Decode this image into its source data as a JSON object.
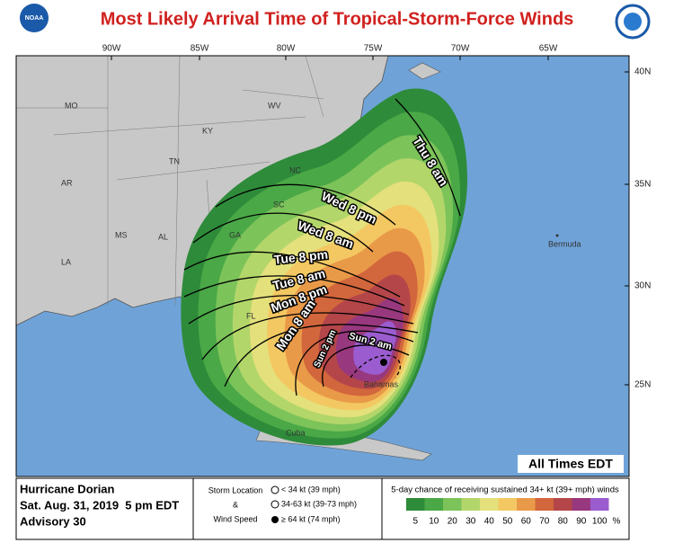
{
  "header": {
    "title": "Most Likely Arrival Time of Tropical-Storm-Force Winds",
    "logo": "NOAA"
  },
  "map": {
    "longitude_labels": [
      "90W",
      "85W",
      "80W",
      "75W",
      "70W",
      "65W"
    ],
    "latitude_labels": [
      "40N",
      "35N",
      "30N",
      "25N"
    ],
    "place_labels": [
      "MO",
      "KY",
      "WV",
      "TN",
      "NC",
      "AR",
      "SC",
      "MS",
      "AL",
      "GA",
      "LA",
      "FL",
      "Bermuda",
      "Cuba",
      "Bahamas"
    ],
    "arrival_labels": [
      "Thu 8 am",
      "Wed 8 pm",
      "Wed 8 am",
      "Tue 8 pm",
      "Tue 8 am",
      "Mon 8 pm",
      "Mon 8 am",
      "Sun 2 pm",
      "Sun 2 am"
    ],
    "time_zone_note": "All Times EDT"
  },
  "footer": {
    "storm_name": "Hurricane Dorian",
    "issued": "Sat. Aug. 31, 2019  5 pm EDT",
    "advisory": "Advisory 30",
    "storm_legend": {
      "title_lines": [
        "Storm Location",
        "&",
        "Wind Speed"
      ],
      "items": [
        "< 34 kt (39 mph)",
        "34-63 kt (39-73 mph)",
        "≥ 64 kt (74 mph)"
      ]
    },
    "probability_legend": {
      "title": "5-day chance of receiving sustained 34+ kt (39+ mph) winds",
      "scale": [
        {
          "value": 5,
          "color": "#2e8b3a"
        },
        {
          "value": 10,
          "color": "#4aa846"
        },
        {
          "value": 20,
          "color": "#7cc35a"
        },
        {
          "value": 30,
          "color": "#b3d66a"
        },
        {
          "value": 40,
          "color": "#e4e07c"
        },
        {
          "value": 50,
          "color": "#f3c862"
        },
        {
          "value": 60,
          "color": "#e99a48"
        },
        {
          "value": 70,
          "color": "#d2663c"
        },
        {
          "value": 80,
          "color": "#b4464a"
        },
        {
          "value": 90,
          "color": "#98387e"
        },
        {
          "value": 100,
          "color": "#9b5ccf"
        }
      ],
      "unit": "%"
    }
  }
}
